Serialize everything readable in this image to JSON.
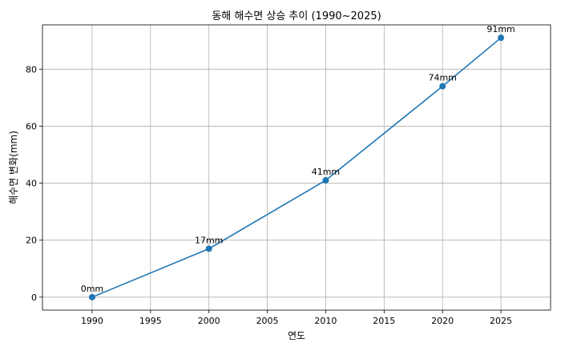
{
  "chart_data": {
    "type": "line",
    "title": "동해 해수면 상승 추이 (1990~2025)",
    "xlabel": "연도",
    "ylabel": "해수면 변화(mm)",
    "x": [
      1990,
      2000,
      2010,
      2020,
      2025
    ],
    "y": [
      0,
      17,
      41,
      74,
      91
    ],
    "data_labels": [
      "0mm",
      "17mm",
      "41mm",
      "74mm",
      "91mm"
    ],
    "xticks": [
      1990,
      1995,
      2000,
      2005,
      2010,
      2015,
      2020,
      2025
    ],
    "yticks": [
      0,
      20,
      40,
      60,
      80
    ],
    "xlim": [
      1985.75,
      2029.25
    ],
    "ylim": [
      -4.55,
      95.55
    ],
    "grid": true,
    "line_color": "#1f77b4",
    "marker": "circle"
  }
}
